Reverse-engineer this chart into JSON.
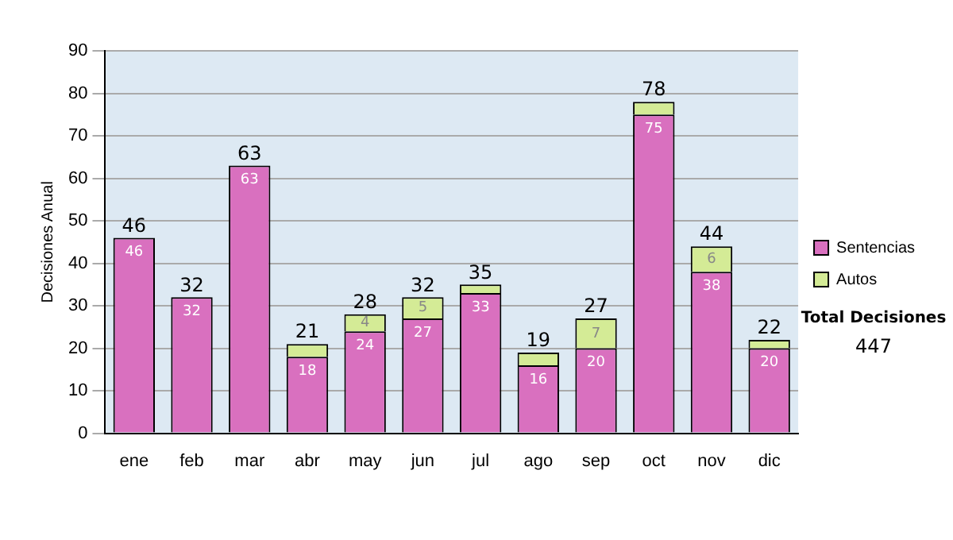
{
  "chart_data": {
    "type": "bar",
    "ylabel": "Decisiones Anual",
    "categories": [
      "ene",
      "feb",
      "mar",
      "abr",
      "may",
      "jun",
      "jul",
      "ago",
      "sep",
      "oct",
      "nov",
      "dic"
    ],
    "stacked": true,
    "series": [
      {
        "name": "Sentencias",
        "color": "#d970bf",
        "values": [
          46,
          32,
          63,
          18,
          24,
          27,
          33,
          16,
          20,
          75,
          38,
          20
        ],
        "value_labels": [
          "46",
          "32",
          "63",
          "18",
          "24",
          "27",
          "33",
          "16",
          "20",
          "75",
          "38",
          "20"
        ]
      },
      {
        "name": "Autos",
        "color": "#d4eb96",
        "values": [
          0,
          0,
          0,
          3,
          4,
          5,
          2,
          3,
          7,
          3,
          6,
          2
        ],
        "value_labels": [
          null,
          null,
          null,
          null,
          "4",
          "5",
          null,
          null,
          "7",
          null,
          "6",
          null
        ]
      }
    ],
    "totals": [
      "46",
      "32",
      "63",
      "21",
      "28",
      "32",
      "35",
      "19",
      "27",
      "78",
      "44",
      "22"
    ],
    "ylim": [
      0,
      90
    ],
    "yticks": [
      0,
      10,
      20,
      30,
      40,
      50,
      60,
      70,
      80,
      90
    ],
    "grid": "y",
    "legend": "right",
    "annotations": [
      "Total Decisiones",
      "447"
    ]
  }
}
